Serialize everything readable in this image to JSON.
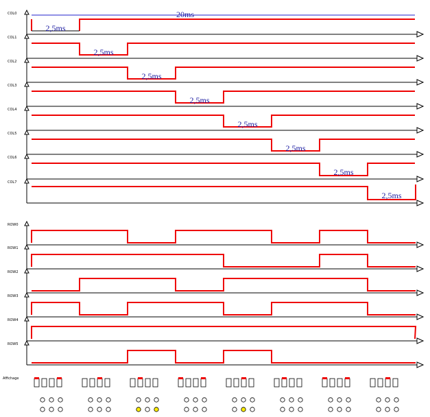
{
  "header": {
    "period_label": "20ms"
  },
  "colors": {
    "signal": "#ee0000",
    "axis": "#000000",
    "annotation": "#1a1aa0",
    "period_line": "#2222cc",
    "led_on": "#ffee00",
    "led_off": "#ffffff"
  },
  "col_signals": [
    {
      "name": "COL0",
      "duration_label": "2,5ms"
    },
    {
      "name": "COL1",
      "duration_label": "2,5ms"
    },
    {
      "name": "COL2",
      "duration_label": "2,5ms"
    },
    {
      "name": "COL3",
      "duration_label": "2,5ms"
    },
    {
      "name": "COL4",
      "duration_label": "2,5ms"
    },
    {
      "name": "COL5",
      "duration_label": "2,5ms"
    },
    {
      "name": "COL6",
      "duration_label": "2,5ms"
    },
    {
      "name": "COL7",
      "duration_label": "2,5ms"
    }
  ],
  "row_signals": [
    {
      "name": "ROW0",
      "levels": [
        1,
        1,
        0,
        1,
        1,
        0,
        1,
        0
      ]
    },
    {
      "name": "ROW1",
      "levels": [
        1,
        1,
        1,
        1,
        0,
        0,
        1,
        0
      ]
    },
    {
      "name": "ROW2",
      "levels": [
        0,
        1,
        1,
        0,
        1,
        1,
        1,
        0
      ]
    },
    {
      "name": "ROW3",
      "levels": [
        1,
        0,
        1,
        1,
        0,
        1,
        1,
        0
      ]
    },
    {
      "name": "ROW4",
      "levels": [
        1,
        1,
        1,
        1,
        1,
        1,
        1,
        1
      ]
    },
    {
      "name": "ROW5",
      "levels": [
        0,
        0,
        1,
        0,
        1,
        0,
        0,
        0
      ]
    }
  ],
  "display": {
    "label": "Affichage",
    "led_on": [
      [],
      [],
      [
        5
      ],
      [],
      [
        4
      ],
      [],
      [],
      []
    ]
  }
}
